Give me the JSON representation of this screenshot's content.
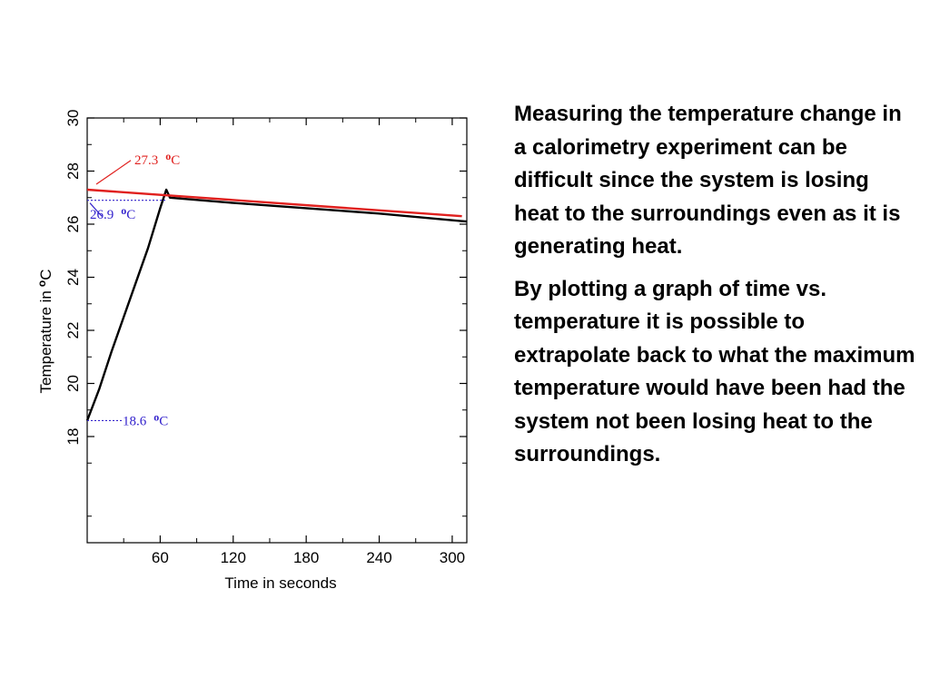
{
  "paragraphs": [
    "Measuring the temperature change in a calorimetry experiment can be difficult since the system is losing heat to the surroundings even as it is generating heat.",
    "By plotting a graph of time vs. temperature it is possible to extrapolate back to what the maximum temperature would have been had the system not been losing heat to the surroundings."
  ],
  "chart_data": {
    "type": "line",
    "title": "",
    "xlabel": "Time in seconds",
    "ylabel": "Temperature in",
    "ylabel_unit_sup": "o",
    "ylabel_unit": "C",
    "xlim": [
      0,
      312
    ],
    "ylim": [
      14,
      30
    ],
    "x_ticks": [
      60,
      120,
      180,
      240,
      300
    ],
    "y_ticks": [
      18,
      20,
      22,
      24,
      26,
      28,
      30
    ],
    "grid": false,
    "series": [
      {
        "values": [
          [
            0,
            18.6
          ],
          [
            10,
            19.8
          ],
          [
            20,
            21.2
          ],
          [
            30,
            22.5
          ],
          [
            40,
            23.8
          ],
          [
            50,
            25.1
          ],
          [
            60,
            26.6
          ],
          [
            65,
            27.3
          ],
          [
            68,
            27.0
          ],
          [
            120,
            26.8
          ],
          [
            180,
            26.6
          ],
          [
            240,
            26.4
          ],
          [
            312,
            26.1
          ]
        ],
        "color": "#000000"
      },
      {
        "values": [
          [
            0,
            27.3
          ],
          [
            308,
            26.3
          ]
        ],
        "color": "#e0201e"
      }
    ],
    "annotations": [
      {
        "value": "27.3",
        "sup": "o",
        "unit": "C",
        "color": "#e0201e"
      },
      {
        "value": "26.9",
        "sup": "o",
        "unit": "C",
        "color": "#3322cc"
      },
      {
        "value": "18.6",
        "sup": "o",
        "unit": "C",
        "color": "#3322cc"
      }
    ]
  }
}
